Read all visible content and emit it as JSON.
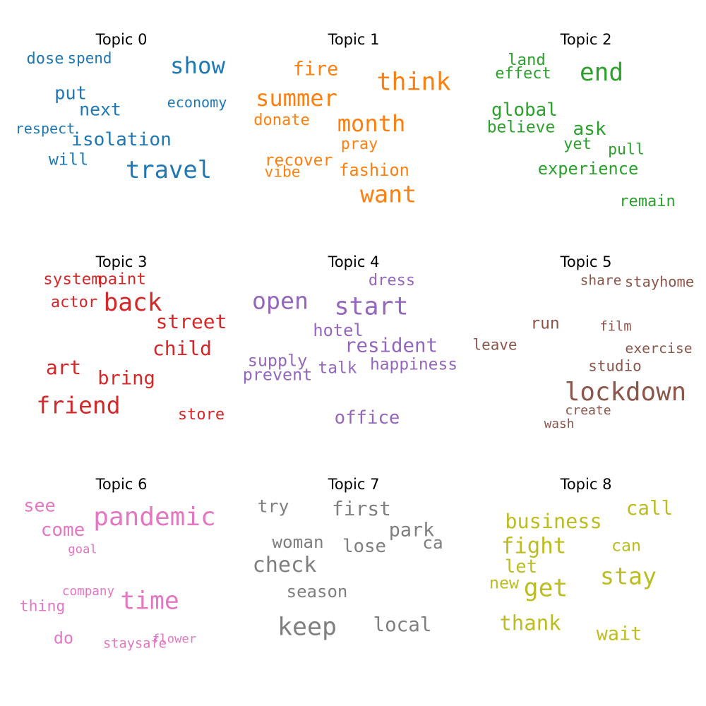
{
  "chart_data": {
    "type": "wordcloud",
    "panels": [
      {
        "title": "Topic 0",
        "color": "#1f77b4",
        "words": [
          {
            "text": "dose",
            "weight": 0.43
          },
          {
            "text": "spend",
            "weight": 0.39
          },
          {
            "text": "show",
            "weight": 0.8
          },
          {
            "text": "put",
            "weight": 0.55
          },
          {
            "text": "next",
            "weight": 0.53
          },
          {
            "text": "economy",
            "weight": 0.36
          },
          {
            "text": "respect",
            "weight": 0.36
          },
          {
            "text": "isolation",
            "weight": 0.58
          },
          {
            "text": "will",
            "weight": 0.48
          },
          {
            "text": "travel",
            "weight": 0.85
          }
        ]
      },
      {
        "title": "Topic 1",
        "color": "#ff7f0e",
        "words": [
          {
            "text": "fire",
            "weight": 0.6
          },
          {
            "text": "think",
            "weight": 0.89
          },
          {
            "text": "summer",
            "weight": 0.79
          },
          {
            "text": "month",
            "weight": 0.79
          },
          {
            "text": "donate",
            "weight": 0.43
          },
          {
            "text": "pray",
            "weight": 0.42
          },
          {
            "text": "recover",
            "weight": 0.46
          },
          {
            "text": "vibe",
            "weight": 0.4
          },
          {
            "text": "fashion",
            "weight": 0.49
          },
          {
            "text": "want",
            "weight": 0.83
          }
        ]
      },
      {
        "title": "Topic 2",
        "color": "#2ca02c",
        "words": [
          {
            "text": "land",
            "weight": 0.44
          },
          {
            "text": "effect",
            "weight": 0.43
          },
          {
            "text": "end",
            "weight": 0.87
          },
          {
            "text": "global",
            "weight": 0.57
          },
          {
            "text": "believe",
            "weight": 0.46
          },
          {
            "text": "ask",
            "weight": 0.58
          },
          {
            "text": "yet",
            "weight": 0.43
          },
          {
            "text": "pull",
            "weight": 0.41
          },
          {
            "text": "experience",
            "weight": 0.49
          },
          {
            "text": "remain",
            "weight": 0.43
          }
        ]
      },
      {
        "title": "Topic 3",
        "color": "#d62728",
        "words": [
          {
            "text": "system",
            "weight": 0.45
          },
          {
            "text": "paint",
            "weight": 0.45
          },
          {
            "text": "actor",
            "weight": 0.43
          },
          {
            "text": "back",
            "weight": 0.87
          },
          {
            "text": "street",
            "weight": 0.64
          },
          {
            "text": "child",
            "weight": 0.64
          },
          {
            "text": "art",
            "weight": 0.64
          },
          {
            "text": "bring",
            "weight": 0.61
          },
          {
            "text": "friend",
            "weight": 0.82
          },
          {
            "text": "store",
            "weight": 0.43
          }
        ]
      },
      {
        "title": "Topic 4",
        "color": "#9467bd",
        "words": [
          {
            "text": "dress",
            "weight": 0.43
          },
          {
            "text": "open",
            "weight": 0.83
          },
          {
            "text": "start",
            "weight": 0.89
          },
          {
            "text": "hotel",
            "weight": 0.49
          },
          {
            "text": "resident",
            "weight": 0.62
          },
          {
            "text": "supply",
            "weight": 0.48
          },
          {
            "text": "prevent",
            "weight": 0.48
          },
          {
            "text": "talk",
            "weight": 0.46
          },
          {
            "text": "happiness",
            "weight": 0.46
          },
          {
            "text": "office",
            "weight": 0.56
          }
        ]
      },
      {
        "title": "Topic 5",
        "color": "#8c564b",
        "words": [
          {
            "text": "share",
            "weight": 0.34
          },
          {
            "text": "stayhome",
            "weight": 0.37
          },
          {
            "text": "run",
            "weight": 0.46
          },
          {
            "text": "film",
            "weight": 0.31
          },
          {
            "text": "leave",
            "weight": 0.39
          },
          {
            "text": "exercise",
            "weight": 0.35
          },
          {
            "text": "studio",
            "weight": 0.39
          },
          {
            "text": "lockdown",
            "weight": 0.92
          },
          {
            "text": "create",
            "weight": 0.29
          },
          {
            "text": "wash",
            "weight": 0.28
          }
        ]
      },
      {
        "title": "Topic 6",
        "color": "#e377c2",
        "words": [
          {
            "text": "see",
            "weight": 0.54
          },
          {
            "text": "pandemic",
            "weight": 0.93
          },
          {
            "text": "come",
            "weight": 0.57
          },
          {
            "text": "goal",
            "weight": 0.26
          },
          {
            "text": "company",
            "weight": 0.27
          },
          {
            "text": "time",
            "weight": 0.88
          },
          {
            "text": "thing",
            "weight": 0.41
          },
          {
            "text": "do",
            "weight": 0.48
          },
          {
            "text": "staysafe",
            "weight": 0.31
          },
          {
            "text": "flower",
            "weight": 0.26
          }
        ]
      },
      {
        "title": "Topic 7",
        "color": "#7f7f7f",
        "words": [
          {
            "text": "try",
            "weight": 0.53
          },
          {
            "text": "first",
            "weight": 0.64
          },
          {
            "text": "park",
            "weight": 0.6
          },
          {
            "text": "woman",
            "weight": 0.51
          },
          {
            "text": "lose",
            "weight": 0.56
          },
          {
            "text": "ca",
            "weight": 0.51
          },
          {
            "text": "check",
            "weight": 0.72
          },
          {
            "text": "season",
            "weight": 0.5
          },
          {
            "text": "keep",
            "weight": 0.89
          },
          {
            "text": "local",
            "weight": 0.63
          }
        ]
      },
      {
        "title": "Topic 8",
        "color": "#bcbd22",
        "words": [
          {
            "text": "call",
            "weight": 0.63
          },
          {
            "text": "business",
            "weight": 0.66
          },
          {
            "text": "fight",
            "weight": 0.74
          },
          {
            "text": "can",
            "weight": 0.47
          },
          {
            "text": "let",
            "weight": 0.56
          },
          {
            "text": "stay",
            "weight": 0.83
          },
          {
            "text": "new",
            "weight": 0.48
          },
          {
            "text": "get",
            "weight": 0.88
          },
          {
            "text": "thank",
            "weight": 0.68
          },
          {
            "text": "wait",
            "weight": 0.6
          }
        ]
      }
    ]
  }
}
